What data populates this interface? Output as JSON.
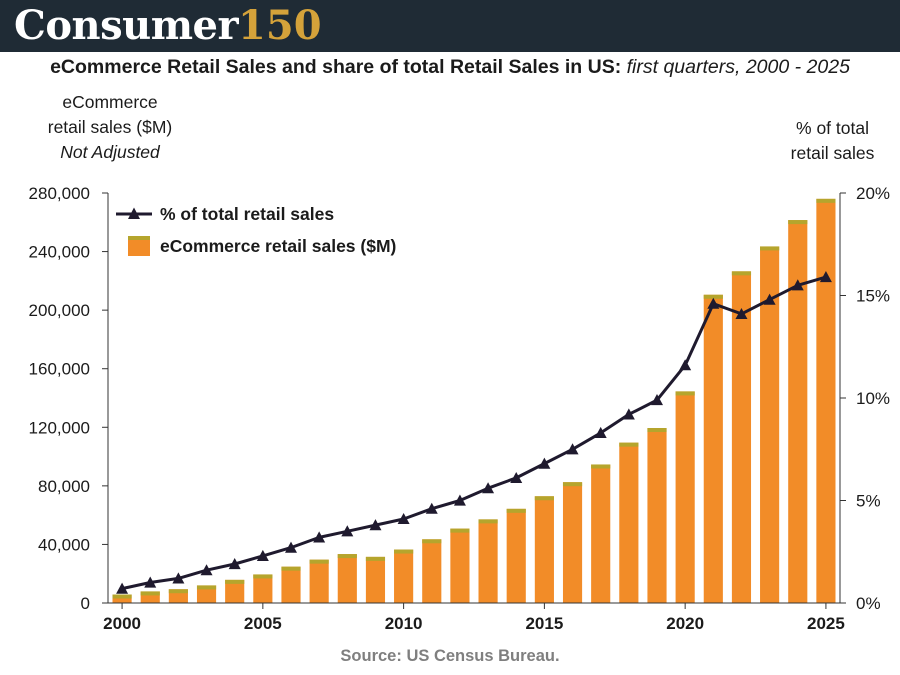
{
  "brand": {
    "name": "Consumer",
    "number": "150",
    "colors": {
      "background": "#1f2b35",
      "name": "#ffffff",
      "number": "#d4a23a"
    }
  },
  "title": {
    "main": "eCommerce Retail Sales and share of total Retail Sales in US:",
    "sub": "first quarters, 2000 - 2025"
  },
  "left_axis_title": {
    "line1": "eCommerce",
    "line2": "retail sales ($M)",
    "note": "Not Adjusted"
  },
  "right_axis_title": {
    "line1": "% of total",
    "line2": "retail sales"
  },
  "source": "Source: US Census Bureau.",
  "chart_data": {
    "type": "bar",
    "categories": [
      2000,
      2001,
      2002,
      2003,
      2004,
      2005,
      2006,
      2007,
      2008,
      2009,
      2010,
      2011,
      2012,
      2013,
      2014,
      2015,
      2016,
      2017,
      2018,
      2019,
      2020,
      2021,
      2022,
      2023,
      2024,
      2025
    ],
    "series": [
      {
        "name": "eCommerce retail sales ($M)",
        "type": "bar",
        "axis": "left",
        "color": "#f28c28",
        "top_color": "#b5a52d",
        "values": [
          5800,
          7900,
          9400,
          12000,
          15800,
          19500,
          24800,
          29600,
          33400,
          31500,
          36500,
          43500,
          50800,
          57100,
          64300,
          72900,
          82500,
          94600,
          109500,
          119500,
          144500,
          210500,
          226500,
          243500,
          261500,
          276000
        ]
      },
      {
        "name": "% of total retail sales",
        "type": "line",
        "axis": "right",
        "color": "#1f1a2e",
        "values": [
          0.7,
          1.0,
          1.2,
          1.6,
          1.9,
          2.3,
          2.7,
          3.2,
          3.5,
          3.8,
          4.1,
          4.6,
          5.0,
          5.6,
          6.1,
          6.8,
          7.5,
          8.3,
          9.2,
          9.9,
          11.6,
          14.6,
          14.1,
          14.8,
          15.5,
          15.9
        ]
      }
    ],
    "y_left": {
      "min": 0,
      "max": 280000,
      "ticks": [
        "0",
        "40,000",
        "80,000",
        "120,000",
        "160,000",
        "200,000",
        "240,000",
        "280,000"
      ],
      "tick_values": [
        0,
        40000,
        80000,
        120000,
        160000,
        200000,
        240000,
        280000
      ]
    },
    "y_right": {
      "min": 0,
      "max": 20,
      "ticks": [
        "0%",
        "5%",
        "10%",
        "15%",
        "20%"
      ],
      "tick_values": [
        0,
        5,
        10,
        15,
        20
      ]
    },
    "x_ticks": [
      "2000",
      "2005",
      "2010",
      "2015",
      "2020",
      "2025"
    ],
    "x_tick_values": [
      2000,
      2005,
      2010,
      2015,
      2020,
      2025
    ],
    "legend": {
      "position": "top-left",
      "line_label": "% of total retail sales",
      "bar_label": "eCommerce retail sales ($M)"
    },
    "grid": false
  }
}
